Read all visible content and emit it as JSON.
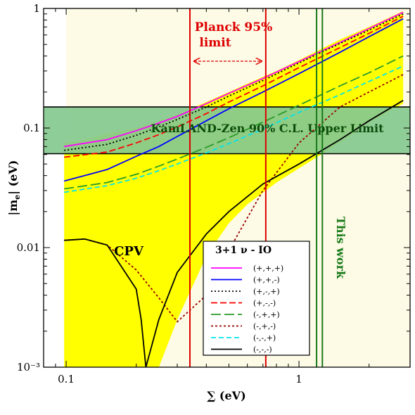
{
  "chart_data": {
    "type": "line",
    "xscale": "log",
    "yscale": "log",
    "xlim": [
      0.08,
      3.0
    ],
    "ylim": [
      0.001,
      1
    ],
    "xlabel": "∑ (eV)",
    "ylabel": "|m_e| (eV)",
    "ylabel_main": "|m",
    "ylabel_sub": "e",
    "ylabel_tail": "| (eV)",
    "x_ticks": [
      {
        "value": 0.1,
        "label": "0.1"
      },
      {
        "value": 1,
        "label": "1"
      }
    ],
    "y_ticks": [
      {
        "value": 0.001,
        "label": "10⁻³"
      },
      {
        "value": 0.01,
        "label": "0.01"
      },
      {
        "value": 0.1,
        "label": "0.1"
      },
      {
        "value": 1,
        "label": "1"
      }
    ],
    "allowed_region": {
      "color": "#ffff00",
      "x": [
        0.098,
        0.12,
        0.15,
        0.2,
        0.25,
        0.3,
        0.4,
        0.5,
        0.6,
        0.8,
        1.0,
        1.5,
        2.0,
        2.8
      ],
      "upper": [
        0.075,
        0.08,
        0.09,
        0.1,
        0.115,
        0.13,
        0.165,
        0.2,
        0.235,
        0.3,
        0.37,
        0.55,
        0.7,
        0.95
      ],
      "lower": [
        0.001,
        0.001,
        0.001,
        0.001,
        0.001,
        0.0025,
        0.0085,
        0.016,
        0.023,
        0.035,
        0.046,
        0.075,
        0.11,
        0.16
      ]
    },
    "bands": [
      {
        "name": "KamLAND-Zen 90% C.L. Upper Limit",
        "y_range": [
          0.061,
          0.15
        ],
        "color": "#86c98f",
        "border": "#000000"
      }
    ],
    "vertical_lines": [
      {
        "x": 0.34,
        "color": "#dd0000"
      },
      {
        "x": 0.72,
        "color": "#dd0000"
      },
      {
        "x": 1.19,
        "color": "#1a7a1a"
      },
      {
        "x": 1.26,
        "color": "#1a7a1a"
      }
    ],
    "annotations": {
      "planck": "Planck 95%",
      "planck_limit": "limit",
      "kamland": "KamLAND-Zen 90% C.L. Upper Limit",
      "cpv": "CPV",
      "this_work": "This work"
    },
    "legend": {
      "title": "3+1 ν - IO",
      "location": "center-right"
    },
    "series": [
      {
        "name": "(+,+,+)",
        "color": "#ff00ff",
        "dash": "",
        "x": [
          0.098,
          0.15,
          0.2,
          0.25,
          0.3,
          0.4,
          0.5,
          0.7,
          1.0,
          1.5,
          2.0,
          2.8
        ],
        "y": [
          0.07,
          0.08,
          0.095,
          0.11,
          0.125,
          0.16,
          0.195,
          0.26,
          0.36,
          0.52,
          0.68,
          0.93
        ]
      },
      {
        "name": "(+,+,-)",
        "color": "#0000ff",
        "dash": "",
        "x": [
          0.098,
          0.15,
          0.2,
          0.25,
          0.3,
          0.4,
          0.5,
          0.7,
          1.0,
          1.5,
          2.0,
          2.8
        ],
        "y": [
          0.036,
          0.045,
          0.058,
          0.07,
          0.085,
          0.115,
          0.145,
          0.2,
          0.285,
          0.43,
          0.58,
          0.82
        ]
      },
      {
        "name": "(+,-,+)",
        "color": "#000000",
        "dash": "2,3",
        "x": [
          0.098,
          0.15,
          0.2,
          0.25,
          0.3,
          0.4,
          0.5,
          0.7,
          1.0,
          1.5,
          2.0,
          2.8
        ],
        "y": [
          0.065,
          0.073,
          0.087,
          0.102,
          0.118,
          0.15,
          0.185,
          0.25,
          0.35,
          0.51,
          0.66,
          0.9
        ]
      },
      {
        "name": "(+,-,-)",
        "color": "#ff0000",
        "dash": "9,4",
        "x": [
          0.098,
          0.15,
          0.2,
          0.25,
          0.3,
          0.4,
          0.5,
          0.7,
          1.0,
          1.5,
          2.0,
          2.8
        ],
        "y": [
          0.057,
          0.063,
          0.075,
          0.088,
          0.102,
          0.132,
          0.165,
          0.225,
          0.32,
          0.47,
          0.62,
          0.86
        ]
      },
      {
        "name": "(-,+,+)",
        "color": "#2a9a2a",
        "dash": "14,5",
        "x": [
          0.098,
          0.15,
          0.2,
          0.25,
          0.3,
          0.4,
          0.5,
          0.7,
          1.0,
          1.5,
          2.0,
          2.8
        ],
        "y": [
          0.031,
          0.035,
          0.041,
          0.048,
          0.055,
          0.069,
          0.083,
          0.112,
          0.155,
          0.225,
          0.29,
          0.4
        ]
      },
      {
        "name": "(-,+,-)",
        "color": "#990000",
        "dash": "3,3",
        "x": [
          0.098,
          0.12,
          0.15,
          0.2,
          0.25,
          0.3,
          0.4,
          0.5,
          0.7,
          1.0,
          1.5,
          2.0,
          2.8
        ],
        "y": [
          0.0115,
          0.0118,
          0.0105,
          0.0065,
          0.0038,
          0.0024,
          0.004,
          0.0095,
          0.03,
          0.075,
          0.15,
          0.2,
          0.28
        ]
      },
      {
        "name": "(-,-,+)",
        "color": "#00e5ee",
        "dash": "7,4",
        "x": [
          0.098,
          0.15,
          0.2,
          0.25,
          0.3,
          0.4,
          0.5,
          0.7,
          1.0,
          1.5,
          2.0,
          2.8
        ],
        "y": [
          0.029,
          0.033,
          0.038,
          0.044,
          0.05,
          0.062,
          0.074,
          0.098,
          0.135,
          0.19,
          0.245,
          0.33
        ]
      },
      {
        "name": "(-,-,-)",
        "color": "#000000",
        "dash": "",
        "x": [
          0.098,
          0.12,
          0.15,
          0.2,
          0.21,
          0.22,
          0.25,
          0.3,
          0.4,
          0.5,
          0.7,
          1.0,
          1.5,
          2.0,
          2.8
        ],
        "y": [
          0.0115,
          0.0118,
          0.0105,
          0.0045,
          0.0025,
          0.001,
          0.0025,
          0.0062,
          0.013,
          0.02,
          0.034,
          0.05,
          0.08,
          0.115,
          0.17
        ]
      }
    ]
  }
}
